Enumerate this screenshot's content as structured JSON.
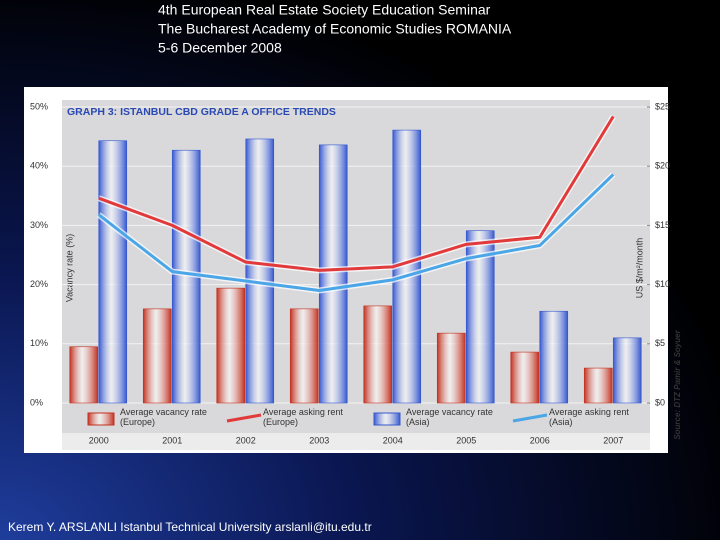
{
  "header": {
    "lines": [
      "4th European Real Estate Society Education Seminar",
      "The Bucharest Academy of Economic Studies ROMANIA",
      "5-6 December 2008"
    ]
  },
  "footer": {
    "text": "Kerem Y. ARSLANLI Istanbul Technical University arslanli@itu.edu.tr"
  },
  "chart_data": {
    "type": "bar",
    "title": "GRAPH 3: ISTANBUL CBD GRADE A OFFICE TRENDS",
    "y_label": "Vacancy rate (%)",
    "y2_label": "US $/m²/month",
    "source": "Source: DTZ Pamir & Soyuer",
    "categories": [
      "2000",
      "2001",
      "2002",
      "2003",
      "2004",
      "2005",
      "2006",
      "2007"
    ],
    "series": [
      {
        "name": "Average vacancy rate (Europe)",
        "type": "bar",
        "color": "#c3311f",
        "values": [
          9.5,
          15.9,
          19.4,
          15.9,
          16.4,
          11.8,
          8.6,
          5.9
        ]
      },
      {
        "name": "Average asking rent (Europe)",
        "type": "line",
        "axis": "y2",
        "color": "#e23a3a",
        "values": [
          17.3,
          15.0,
          11.9,
          11.2,
          11.5,
          13.4,
          14.0,
          24.2
        ]
      },
      {
        "name": "Average vacancy rate (Asia)",
        "type": "bar",
        "color": "#3557cf",
        "values": [
          44.3,
          42.7,
          44.6,
          43.6,
          46.1,
          29.1,
          15.5,
          11.0
        ]
      },
      {
        "name": "Average asking rent (Asia)",
        "type": "line",
        "axis": "y2",
        "color": "#4aa6e6",
        "values": [
          15.9,
          11.1,
          10.3,
          9.5,
          10.4,
          12.2,
          13.3,
          19.3
        ]
      }
    ],
    "ylim": [
      0,
      50
    ],
    "yticks": [
      {
        "value": 0,
        "label": "0%"
      },
      {
        "value": 10,
        "label": "10%"
      },
      {
        "value": 20,
        "label": "20%"
      },
      {
        "value": 30,
        "label": "30%"
      },
      {
        "value": 40,
        "label": "40%"
      },
      {
        "value": 50,
        "label": "50%"
      }
    ],
    "y2lim": [
      0,
      25
    ],
    "y2ticks": [
      {
        "value": 0,
        "label": "$0"
      },
      {
        "value": 5,
        "label": "$5"
      },
      {
        "value": 10,
        "label": "$10"
      },
      {
        "value": 15,
        "label": "$15"
      },
      {
        "value": 20,
        "label": "$20"
      },
      {
        "value": 25,
        "label": "$25"
      }
    ],
    "grid": true,
    "legend": "bottom"
  }
}
